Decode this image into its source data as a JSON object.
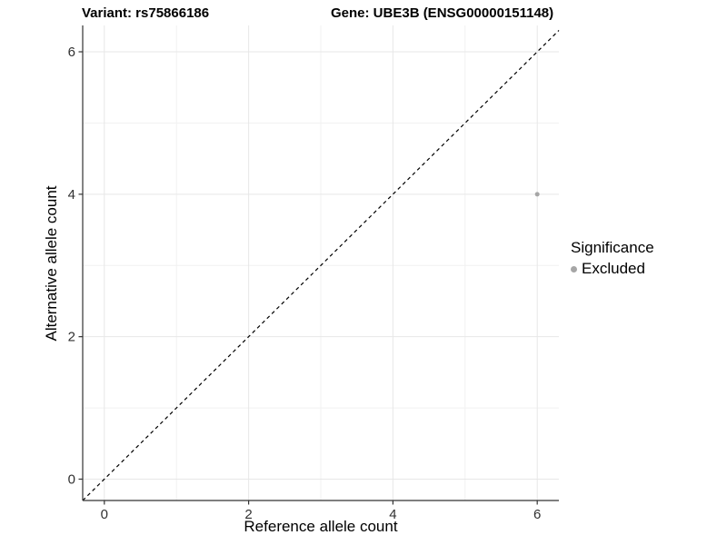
{
  "titles": {
    "variant": "Variant: rs75866186",
    "gene": "Gene: UBE3B (ENSG00000151148)"
  },
  "legend": {
    "title": "Significance",
    "items": [
      {
        "label": "Excluded",
        "color": "#a6a6a6"
      }
    ]
  },
  "chart_data": {
    "type": "scatter",
    "title_left": "Variant: rs75866186",
    "title_right": "Gene: UBE3B (ENSG00000151148)",
    "xlabel": "Reference allele count",
    "ylabel": "Alternative allele count",
    "xlim": [
      -0.3,
      6.3
    ],
    "ylim": [
      -0.3,
      6.37
    ],
    "x_ticks": [
      0,
      2,
      4,
      6
    ],
    "y_ticks": [
      0,
      2,
      4,
      6
    ],
    "x_minor_ticks": [
      1,
      3,
      5
    ],
    "y_minor_ticks": [
      1,
      3,
      5
    ],
    "grid": true,
    "points": [
      {
        "x": 6,
        "y": 4,
        "series": "Excluded",
        "color": "#a6a6a6",
        "radius": 2.5
      }
    ],
    "reference_line": {
      "type": "identity",
      "style": "dashed",
      "color": "#000000"
    },
    "legend": {
      "title": "Significance",
      "entries": [
        "Excluded"
      ],
      "position": "right"
    },
    "colors": {
      "grid_major": "#e7e7e7",
      "grid_minor": "#f1f1f1",
      "axis": "#333333",
      "tick_label": "#303030",
      "point": "#a6a6a6"
    }
  }
}
